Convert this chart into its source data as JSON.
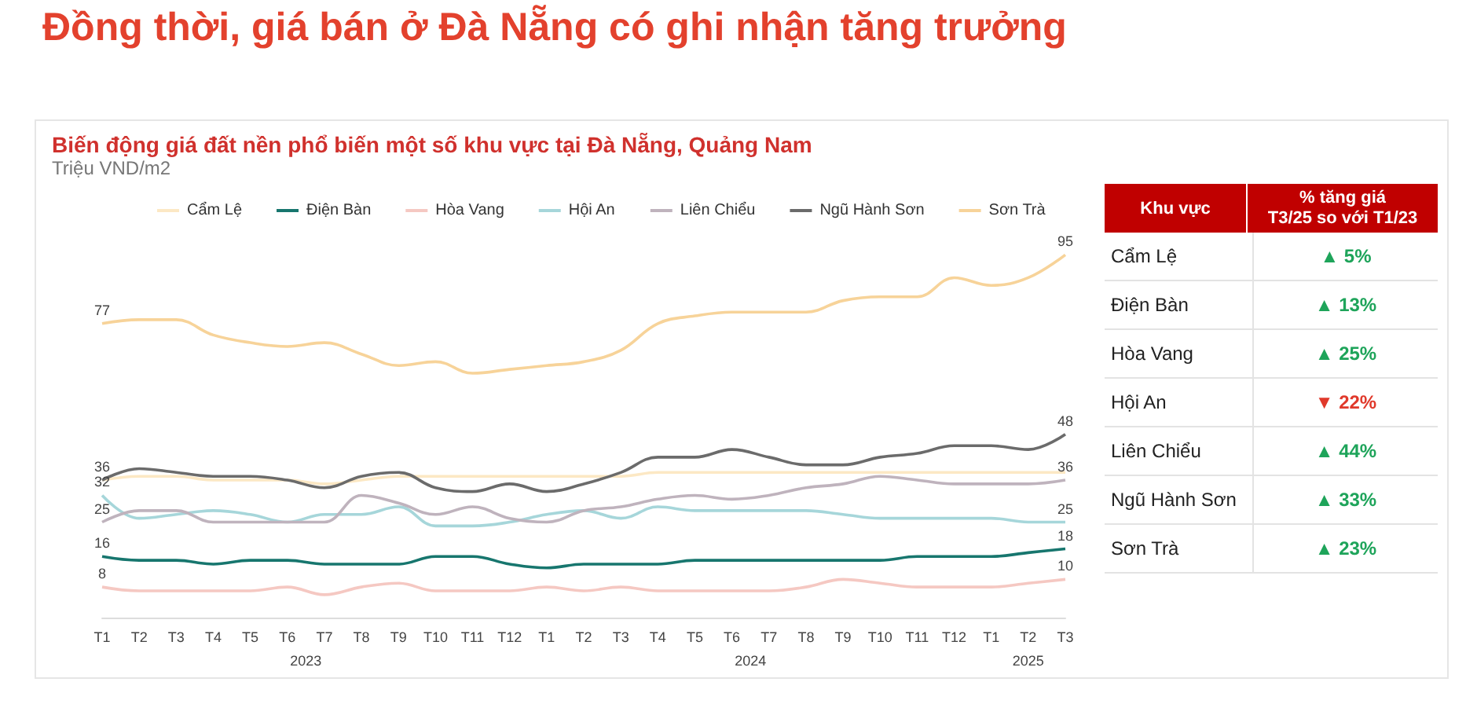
{
  "chart_data": [
    {
      "type": "line",
      "title": "Đồng thời, giá bán ở Đà Nẵng có ghi nhận tăng trưởng",
      "subtitle": "Biến động giá đất nền phổ biến một số khu vực tại Đà Nẵng, Quảng Nam",
      "ylabel": "Triệu VND/m2",
      "categories": [
        "T1",
        "T2",
        "T3",
        "T4",
        "T5",
        "T6",
        "T7",
        "T8",
        "T9",
        "T10",
        "T11",
        "T12",
        "T1",
        "T2",
        "T3",
        "T4",
        "T5",
        "T6",
        "T7",
        "T8",
        "T9",
        "T10",
        "T11",
        "T12",
        "T1",
        "T2",
        "T3"
      ],
      "annotations": [
        "2023",
        "2024",
        "2025"
      ],
      "legend": "top",
      "series": [
        {
          "name": "Cẩm Lệ",
          "color": "#fce8c4",
          "values": [
            36,
            37,
            37,
            36,
            36,
            36,
            35,
            36,
            37,
            37,
            37,
            37,
            37,
            37,
            37,
            38,
            38,
            38,
            38,
            38,
            38,
            38,
            38,
            38,
            38,
            38,
            38
          ]
        },
        {
          "name": "Điện Bàn",
          "color": "#17766e",
          "values": [
            16,
            15,
            15,
            14,
            15,
            15,
            14,
            14,
            14,
            16,
            16,
            14,
            13,
            14,
            14,
            14,
            15,
            15,
            15,
            15,
            15,
            15,
            16,
            16,
            16,
            17,
            18
          ],
          "value_labels": [
            "16",
            null,
            null,
            null,
            null,
            null,
            null,
            null,
            null,
            null,
            null,
            null,
            null,
            null,
            null,
            null,
            null,
            null,
            null,
            null,
            null,
            null,
            null,
            null,
            null,
            null,
            "18"
          ]
        },
        {
          "name": "Hòa Vang",
          "color": "#f5c8c2",
          "values": [
            8,
            7,
            7,
            7,
            7,
            8,
            6,
            8,
            9,
            7,
            7,
            7,
            8,
            7,
            8,
            7,
            7,
            7,
            7,
            8,
            10,
            9,
            8,
            8,
            8,
            9,
            10
          ],
          "value_labels": [
            "8",
            null,
            null,
            null,
            null,
            null,
            null,
            null,
            null,
            null,
            null,
            null,
            null,
            null,
            null,
            null,
            null,
            null,
            null,
            null,
            null,
            null,
            null,
            null,
            null,
            null,
            "10"
          ]
        },
        {
          "name": "Hội An",
          "color": "#a6d6da",
          "values": [
            32,
            26,
            27,
            28,
            27,
            25,
            27,
            27,
            29,
            24,
            24,
            25,
            27,
            28,
            26,
            29,
            28,
            28,
            28,
            28,
            27,
            26,
            26,
            26,
            26,
            25,
            25
          ],
          "value_labels": [
            "32",
            null,
            null,
            null,
            null,
            null,
            null,
            null,
            null,
            null,
            null,
            null,
            null,
            null,
            null,
            null,
            null,
            null,
            null,
            null,
            null,
            null,
            null,
            null,
            null,
            null,
            "25"
          ]
        },
        {
          "name": "Liên Chiểu",
          "color": "#bfb3bd",
          "values": [
            25,
            28,
            28,
            25,
            25,
            25,
            25,
            32,
            30,
            27,
            29,
            26,
            25,
            28,
            29,
            31,
            32,
            31,
            32,
            34,
            35,
            37,
            36,
            35,
            35,
            35,
            36
          ],
          "value_labels": [
            "25",
            null,
            null,
            null,
            null,
            null,
            null,
            null,
            null,
            null,
            null,
            null,
            null,
            null,
            null,
            null,
            null,
            null,
            null,
            null,
            null,
            null,
            null,
            null,
            null,
            null,
            "36"
          ]
        },
        {
          "name": "Ngũ Hành Sơn",
          "color": "#6b6b6b",
          "values": [
            36,
            39,
            38,
            37,
            37,
            36,
            34,
            37,
            38,
            34,
            33,
            35,
            33,
            35,
            38,
            42,
            42,
            44,
            42,
            40,
            40,
            42,
            43,
            45,
            45,
            44,
            48
          ],
          "value_labels": [
            "36",
            null,
            null,
            null,
            null,
            null,
            null,
            null,
            null,
            null,
            null,
            null,
            null,
            null,
            null,
            null,
            null,
            null,
            null,
            null,
            null,
            null,
            null,
            null,
            null,
            null,
            "48"
          ]
        },
        {
          "name": "Sơn Trà",
          "color": "#f7d399",
          "values": [
            77,
            78,
            78,
            74,
            72,
            71,
            72,
            69,
            66,
            67,
            64,
            65,
            66,
            67,
            70,
            77,
            79,
            80,
            80,
            80,
            83,
            84,
            84,
            89,
            87,
            89,
            95
          ],
          "value_labels": [
            "77",
            null,
            null,
            null,
            null,
            null,
            null,
            null,
            null,
            null,
            null,
            null,
            null,
            null,
            null,
            null,
            null,
            null,
            null,
            null,
            null,
            null,
            null,
            null,
            null,
            null,
            "95"
          ]
        }
      ]
    },
    {
      "type": "other",
      "xlabel": "Khu vực",
      "ylabel": "% tăng giá\nT3/25 so với T1/23",
      "categories": [
        "Cẩm Lệ",
        "Điện Bàn",
        "Hòa Vang",
        "Hội An",
        "Liên Chiểu",
        "Ngũ Hành Sơn",
        "Sơn Trà"
      ],
      "value_labels": [
        "▲ 5%",
        "▲ 13%",
        "▲ 25%",
        "▼ 22%",
        "▲ 44%",
        "▲ 33%",
        "▲ 23%"
      ],
      "colors": [
        "#1ea45a",
        "#1ea45a",
        "#1ea45a",
        "#e0392b",
        "#1ea45a",
        "#1ea45a",
        "#1ea45a"
      ]
    }
  ]
}
